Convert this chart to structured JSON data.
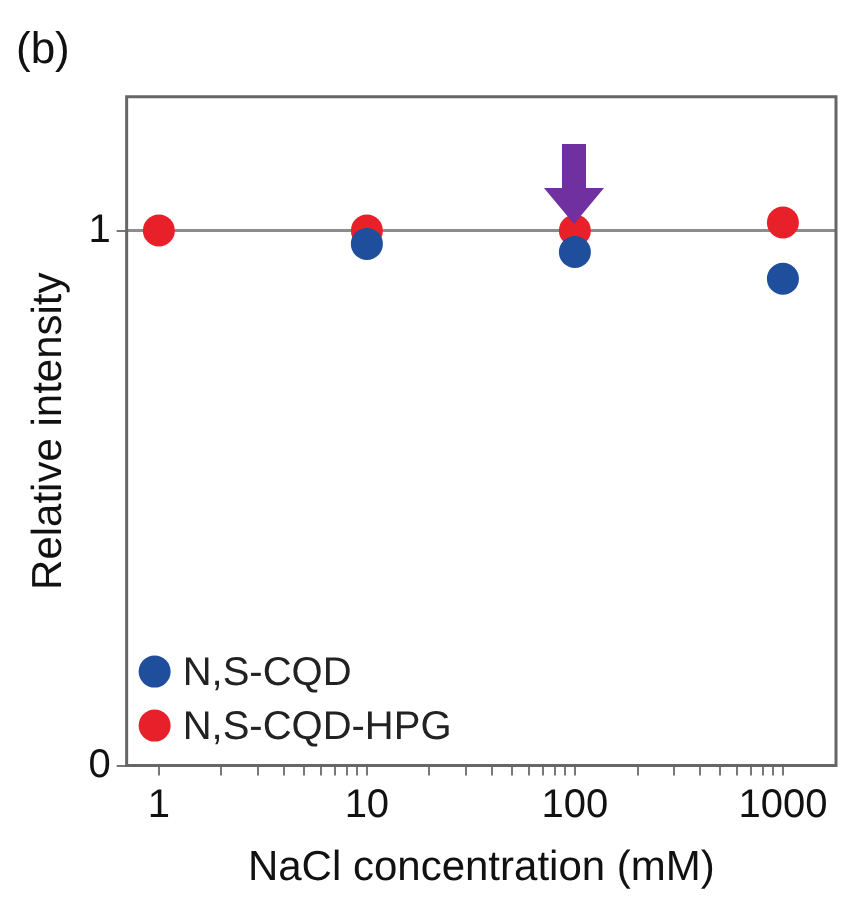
{
  "chart_data": {
    "type": "scatter",
    "title": "(b)",
    "xlabel": "NaCl concentration (mM)",
    "ylabel": "Relative intensity",
    "x": [
      1,
      10,
      100,
      1000
    ],
    "series": [
      {
        "name": "N,S-CQD",
        "color": "#1f4e9c",
        "values": [
          null,
          0.975,
          0.96,
          0.91
        ]
      },
      {
        "name": "N,S-CQD-HPG",
        "color": "#e8202a",
        "values": [
          1,
          1,
          1,
          1.015
        ]
      }
    ],
    "log": "x",
    "xlim": [
      0.7,
      1800
    ],
    "xticks": [
      1,
      {
        "value": 2,
        "label": null
      },
      {
        "value": 3,
        "label": null
      },
      {
        "value": 4,
        "label": null
      },
      {
        "value": 5,
        "label": null
      },
      {
        "value": 6,
        "label": null
      },
      {
        "value": 7,
        "label": null
      },
      {
        "value": 8,
        "label": null
      },
      {
        "value": 9,
        "label": null
      },
      10,
      {
        "value": 20,
        "label": null
      },
      {
        "value": 30,
        "label": null
      },
      {
        "value": 40,
        "label": null
      },
      {
        "value": 50,
        "label": null
      },
      {
        "value": 60,
        "label": null
      },
      {
        "value": 70,
        "label": null
      },
      {
        "value": 80,
        "label": null
      },
      {
        "value": 90,
        "label": null
      },
      100,
      {
        "value": 200,
        "label": null
      },
      {
        "value": 300,
        "label": null
      },
      {
        "value": 400,
        "label": null
      },
      {
        "value": 500,
        "label": null
      },
      {
        "value": 600,
        "label": null
      },
      {
        "value": 700,
        "label": null
      },
      {
        "value": 800,
        "label": null
      },
      {
        "value": 900,
        "label": null
      },
      1000
    ],
    "ylim": [
      0,
      1.25
    ],
    "yticks": [
      0,
      1
    ],
    "ref_lines": [
      {
        "axis": "y",
        "value": 1,
        "color": "#8c8c8c"
      }
    ],
    "legend": "bottom left",
    "marker": "circle",
    "grid": false
  }
}
